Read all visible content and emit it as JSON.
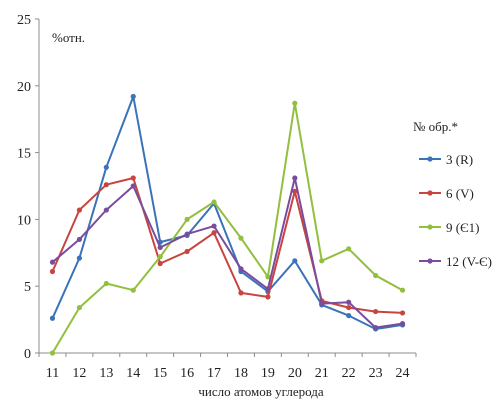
{
  "chart_data": {
    "type": "line",
    "title": "",
    "xlabel": "число атомов углерода",
    "ylabel": "%отн.",
    "x": [
      11,
      12,
      13,
      14,
      15,
      16,
      17,
      18,
      19,
      20,
      21,
      22,
      23,
      24
    ],
    "ylim": [
      0,
      25
    ],
    "yticks": [
      0,
      5,
      10,
      15,
      20,
      25
    ],
    "grid": false,
    "legend": {
      "title": "№ обр.*",
      "position": "right"
    },
    "series": [
      {
        "name": "3 (R)",
        "color": "#3a73b8",
        "values": [
          2.6,
          7.1,
          13.9,
          19.2,
          8.3,
          8.8,
          11.2,
          6.1,
          4.6,
          6.9,
          3.6,
          2.8,
          1.8,
          2.1
        ]
      },
      {
        "name": "6 (V)",
        "color": "#c8443f",
        "values": [
          6.1,
          10.7,
          12.6,
          13.1,
          6.7,
          7.6,
          9.0,
          4.5,
          4.2,
          12.1,
          3.9,
          3.4,
          3.1,
          3.0
        ]
      },
      {
        "name": "9 (Є1)",
        "color": "#93bf3e",
        "values": [
          0.0,
          3.4,
          5.2,
          4.7,
          7.2,
          10.0,
          11.3,
          8.6,
          5.7,
          18.7,
          6.9,
          7.8,
          5.8,
          4.7
        ]
      },
      {
        "name": "12 (V-Є)",
        "color": "#7a4c9e",
        "values": [
          6.8,
          8.5,
          10.7,
          12.5,
          7.9,
          8.9,
          9.5,
          6.3,
          4.8,
          13.1,
          3.7,
          3.8,
          1.9,
          2.2
        ]
      }
    ]
  }
}
